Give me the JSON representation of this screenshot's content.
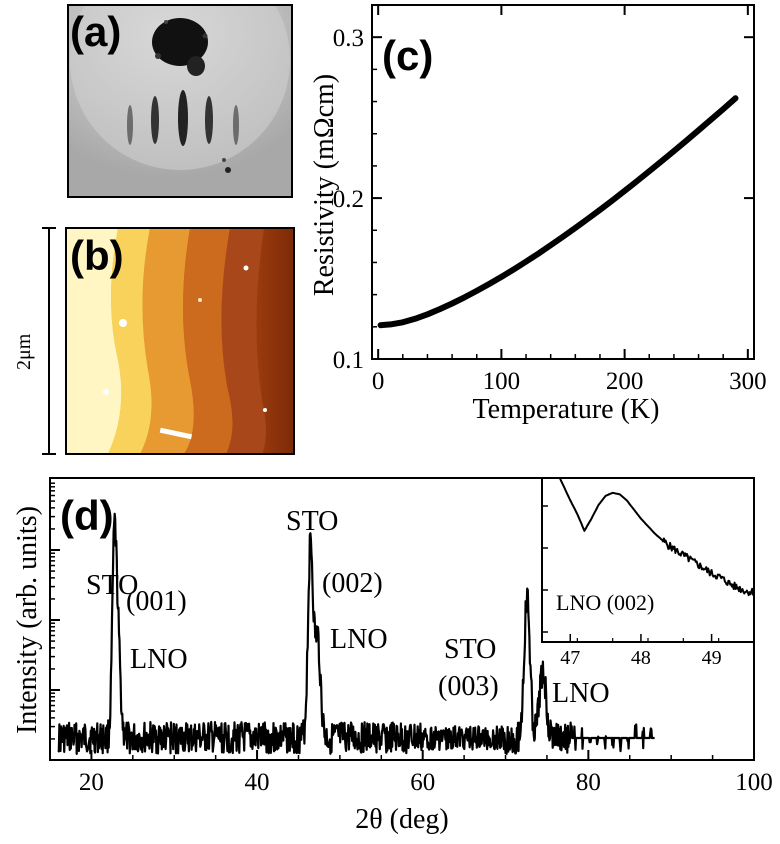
{
  "panels": {
    "a": {
      "label": "(a)"
    },
    "b": {
      "label": "(b)",
      "scale_label": "2μm"
    },
    "c": {
      "label": "(c)"
    },
    "d": {
      "label": "(d)"
    }
  },
  "chart_data": [
    {
      "id": "c",
      "type": "line",
      "title": "",
      "xlabel": "Temperature (K)",
      "ylabel": "Resistivity (mΩcm)",
      "xlim": [
        -5,
        305
      ],
      "ylim": [
        0.1,
        0.32
      ],
      "xticks": [
        0,
        100,
        200,
        300
      ],
      "yticks": [
        0.1,
        0.2,
        0.3
      ],
      "xtick_labels": [
        "0",
        "100",
        "200",
        "300"
      ],
      "ytick_labels": [
        "0.1",
        "0.2",
        "0.3"
      ],
      "x": [
        2,
        10,
        20,
        30,
        40,
        50,
        60,
        70,
        80,
        90,
        100,
        110,
        120,
        130,
        140,
        150,
        160,
        170,
        180,
        190,
        200,
        210,
        220,
        230,
        240,
        250,
        260,
        270,
        280,
        290
      ],
      "y": [
        0.121,
        0.1215,
        0.1228,
        0.125,
        0.1278,
        0.131,
        0.1345,
        0.1383,
        0.1423,
        0.1466,
        0.151,
        0.1557,
        0.1605,
        0.1655,
        0.1707,
        0.176,
        0.1815,
        0.187,
        0.1927,
        0.1985,
        0.2045,
        0.2105,
        0.2167,
        0.2229,
        0.2292,
        0.2356,
        0.2421,
        0.2487,
        0.2553,
        0.262
      ]
    },
    {
      "id": "d",
      "type": "line",
      "title": "",
      "xlabel": "2θ (deg)",
      "ylabel": "Intensity (arb. units)",
      "xlim": [
        15,
        100
      ],
      "xticks": [
        20,
        40,
        60,
        80,
        100
      ],
      "xtick_labels": [
        "20",
        "40",
        "60",
        "80",
        "100"
      ],
      "log_scale_y": true,
      "peaks": [
        {
          "x": 22.75,
          "height": 0.92,
          "width": 0.25
        },
        {
          "x": 23.2,
          "height": 0.5,
          "width": 0.3
        },
        {
          "x": 46.45,
          "height": 1.0,
          "width": 0.3
        },
        {
          "x": 47.3,
          "height": 0.52,
          "width": 0.35
        },
        {
          "x": 72.6,
          "height": 0.72,
          "width": 0.35
        },
        {
          "x": 74.5,
          "height": 0.35,
          "width": 0.4
        }
      ],
      "annotations": [
        {
          "text": "STO",
          "x": 22.75
        },
        {
          "text": "(001)",
          "x": 23.2
        },
        {
          "text": "LNO",
          "x": 23.2
        },
        {
          "text": "STO",
          "x": 46.45
        },
        {
          "text": "(002)",
          "x": 47.3
        },
        {
          "text": "LNO",
          "x": 47.3
        },
        {
          "text": "STO",
          "x": 72.6
        },
        {
          "text": "(003)",
          "x": 72.6
        },
        {
          "text": "LNO",
          "x": 74.5
        }
      ],
      "inset": {
        "type": "line",
        "xlim": [
          46.6,
          49.6
        ],
        "xticks": [
          47,
          48,
          49
        ],
        "xtick_labels": [
          "47",
          "48",
          "49"
        ],
        "annotation": "LNO (002)",
        "x": [
          46.8,
          46.9,
          47.0,
          47.1,
          47.2,
          47.3,
          47.4,
          47.5,
          47.6,
          47.7,
          47.8,
          47.9,
          48.0,
          48.1,
          48.2,
          48.3,
          48.4,
          48.5,
          48.6,
          48.7,
          48.8,
          48.9,
          49.0,
          49.1,
          49.2,
          49.3,
          49.4,
          49.5,
          49.6
        ],
        "y": [
          1.0,
          0.9,
          0.8,
          0.71,
          0.6,
          0.68,
          0.77,
          0.83,
          0.85,
          0.84,
          0.8,
          0.74,
          0.68,
          0.63,
          0.58,
          0.54,
          0.5,
          0.47,
          0.44,
          0.41,
          0.38,
          0.35,
          0.32,
          0.3,
          0.27,
          0.24,
          0.22,
          0.2,
          0.2
        ]
      }
    }
  ]
}
